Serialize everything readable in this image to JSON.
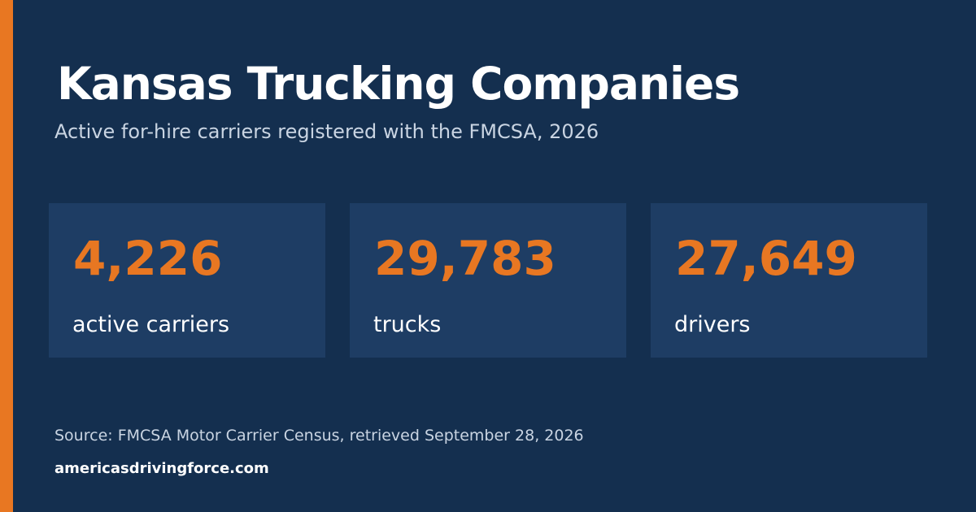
{
  "colors": {
    "background": "#142f4f",
    "card": "#1e3d64",
    "accent": "#e87722",
    "text": "#ffffff",
    "muted_text": "#c9d4e2"
  },
  "header": {
    "title": "Kansas Trucking Companies",
    "subtitle": "Active for-hire carriers registered with the FMCSA, 2026"
  },
  "stats": [
    {
      "value": "4,226",
      "label": "active carriers"
    },
    {
      "value": "29,783",
      "label": "trucks"
    },
    {
      "value": "27,649",
      "label": "drivers"
    }
  ],
  "footer": {
    "source": "Source: FMCSA Motor Carrier Census, retrieved September 28, 2026",
    "site": "americasdrivingforce.com"
  }
}
